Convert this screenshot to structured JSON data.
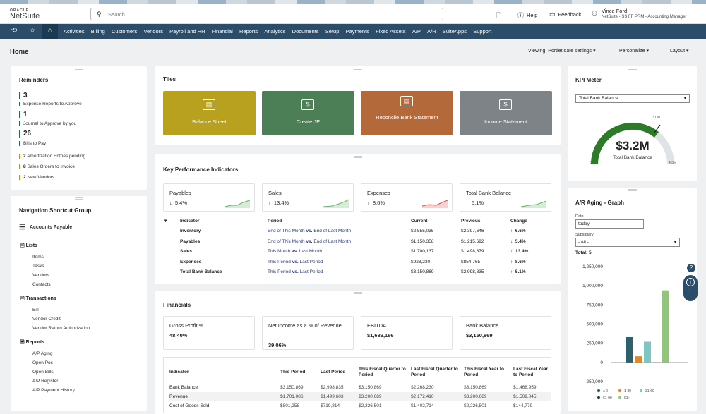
{
  "brand": {
    "oracle": "ORACLE",
    "netsuite": "NetSuite"
  },
  "search": {
    "placeholder": "Search"
  },
  "topbar": {
    "help": "Help",
    "feedback": "Feedback",
    "user_name": "Vince Ford",
    "user_role": "NetSuite - SS FF PRM - Accounting Manager"
  },
  "nav": {
    "items": [
      "Activities",
      "Billing",
      "Customers",
      "Vendors",
      "Payroll and HR",
      "Financial",
      "Reports",
      "Analytics",
      "Documents",
      "Setup",
      "Payments",
      "Fixed Assets",
      "A/P",
      "A/R",
      "SuiteApps",
      "Support"
    ]
  },
  "page": {
    "title": "Home",
    "viewing": "Viewing: Portlet date settings",
    "personalize": "Personalize",
    "layout": "Layout"
  },
  "reminders": {
    "title": "Reminders",
    "big": [
      {
        "count": "3",
        "label": "Expense Reports to Approve"
      },
      {
        "count": "1",
        "label": "Journal to Approve by you"
      },
      {
        "count": "26",
        "label": "Bills to Pay"
      }
    ],
    "small": [
      {
        "count": "2",
        "label": "Amortization Entries pending"
      },
      {
        "count": "8",
        "label": "Sales Orders to Invoice"
      },
      {
        "count": "2",
        "label": "New Vendors"
      }
    ]
  },
  "nsg": {
    "title": "Navigation Shortcut Group",
    "menu": "Accounts Payable",
    "lists": {
      "title": "Lists",
      "items": [
        "Items",
        "Tasks",
        "Vendors",
        "Contacts"
      ]
    },
    "transactions": {
      "title": "Transactions",
      "items": [
        "Bill",
        "Vendor Credit",
        "Vendor Return Authorization"
      ]
    },
    "reports": {
      "title": "Reports",
      "items": [
        "A/P Aging",
        "Open Pos",
        "Open Bills",
        "A/P Register",
        "A/P Payment History"
      ]
    }
  },
  "tiles": {
    "title": "Tiles",
    "items": [
      {
        "label": "Balance Sheet",
        "color": "#b8a11f"
      },
      {
        "label": "Create JE",
        "color": "#4d7f57"
      },
      {
        "label": "Reconcile Bank Statement",
        "color": "#b4693a"
      },
      {
        "label": "Income Statement",
        "color": "#7e8388"
      }
    ]
  },
  "kpi": {
    "title": "Key Performance Indicators",
    "boxes": [
      {
        "label": "Payables",
        "arrow": "↓",
        "value": "5.4%"
      },
      {
        "label": "Sales",
        "arrow": "↑",
        "value": "13.4%"
      },
      {
        "label": "Expenses",
        "arrow": "↑",
        "value": "8.6%"
      },
      {
        "label": "Total Bank Balance",
        "arrow": "↑",
        "value": "5.1%"
      }
    ],
    "headers": [
      "Indicator",
      "Period",
      "Current",
      "Previous",
      "Change"
    ],
    "rows": [
      {
        "indicator": "Inventory",
        "period_a": "End of This Month",
        "vs": "vs.",
        "period_b": "End of Last Month",
        "current": "$2,555,035",
        "previous": "$2,397,646",
        "arrow": "↑",
        "change": "6.6%"
      },
      {
        "indicator": "Payables",
        "period_a": "End of This Month",
        "vs": "vs.",
        "period_b": "End of Last Month",
        "current": "$1,150,358",
        "previous": "$1,215,692",
        "arrow": "↓",
        "change": "5.4%"
      },
      {
        "indicator": "Sales",
        "period_a": "This Month",
        "vs": "vs.",
        "period_b": "Last Month",
        "current": "$1,700,137",
        "previous": "$1,498,879",
        "arrow": "↑",
        "change": "13.4%"
      },
      {
        "indicator": "Expenses",
        "period_a": "This Period",
        "vs": "vs.",
        "period_b": "Last Period",
        "current": "$928,230",
        "previous": "$854,765",
        "arrow": "↑",
        "change": "8.6%"
      },
      {
        "indicator": "Total Bank Balance",
        "period_a": "This Period",
        "vs": "vs.",
        "period_b": "Last Period",
        "current": "$3,150,869",
        "previous": "$2,998,835",
        "arrow": "↑",
        "change": "5.1%"
      }
    ]
  },
  "financials": {
    "title": "Financials",
    "boxes": [
      {
        "label": "Gross Profit %",
        "value": "48.40%"
      },
      {
        "label": "Net Income as a % of Revenue",
        "value": "39.06%"
      },
      {
        "label": "EBITDA",
        "value": "$1,689,166"
      },
      {
        "label": "Bank Balance",
        "value": "$3,150,869"
      }
    ],
    "headers": [
      "Indicator",
      "This Period",
      "Last Period",
      "This Fiscal Quarter to Period",
      "Last Fiscal Quarter to Period",
      "This Fiscal Year to Period",
      "Last Fiscal Year to Period"
    ],
    "rows": [
      [
        "Bank Balance",
        "$3,150,869",
        "$2,998,835",
        "$3,150,869",
        "$2,268,230",
        "$3,150,869",
        "$1,468,959"
      ],
      [
        "Revenue",
        "$1,701,086",
        "$1,499,603",
        "$3,200,689",
        "$2,172,410",
        "$3,200,689",
        "$1,509,045"
      ],
      [
        "Cost of Goods Sold",
        "$801,258",
        "$719,814",
        "$2,226,501",
        "$1,402,714",
        "$2,226,501",
        "$144,779"
      ]
    ]
  },
  "kpi_meter": {
    "title": "KPI Meter",
    "select": "Total Bank Balance",
    "value": "$3.2M",
    "label": "Total Bank Balance",
    "min": "0",
    "target": "3.0M",
    "max": "4.3M"
  },
  "ar_aging": {
    "title": "A/R Aging - Graph",
    "date_label": "Date",
    "date_value": "today",
    "subsidiary_label": "Subsidiary",
    "subsidiary_value": "- All -",
    "total": "Total: 5"
  },
  "chart_data": {
    "type": "bar",
    "categories": [
      "≤ 0",
      "1-30",
      "31-60",
      "61-90",
      "91+"
    ],
    "series": [
      {
        "values": [
          330000,
          80000,
          270000,
          0,
          940000
        ]
      }
    ],
    "colors": [
      "#2e5f6b",
      "#e8871e",
      "#7cc7c2",
      "#2b3a3f",
      "#93c47d"
    ],
    "yticks": [
      "1,250,000",
      "1,000,000",
      "750,000",
      "500,000",
      "250,000",
      "0",
      "-250,000"
    ],
    "ylim": [
      -250000,
      1250000
    ],
    "legend": [
      "≤ 0",
      "1-30",
      "31-60",
      "61-90",
      "91+"
    ]
  }
}
